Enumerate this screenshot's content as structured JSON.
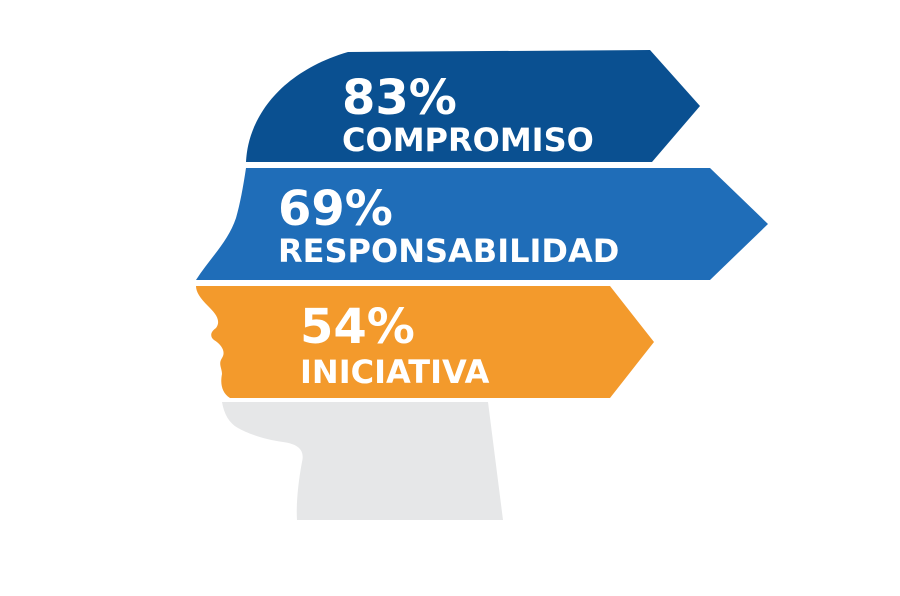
{
  "bands": [
    {
      "value": "83%",
      "label": "COMPROMISO",
      "color": "#0a5091"
    },
    {
      "value": "69%",
      "label": "RESPONSABILIDAD",
      "color": "#1f6db8"
    },
    {
      "value": "54%",
      "label": "INICIATIVA",
      "color": "#f39a2c"
    }
  ],
  "colors": {
    "text": "#ffffff",
    "neck": "#e6e7e8",
    "background": "#ffffff"
  }
}
